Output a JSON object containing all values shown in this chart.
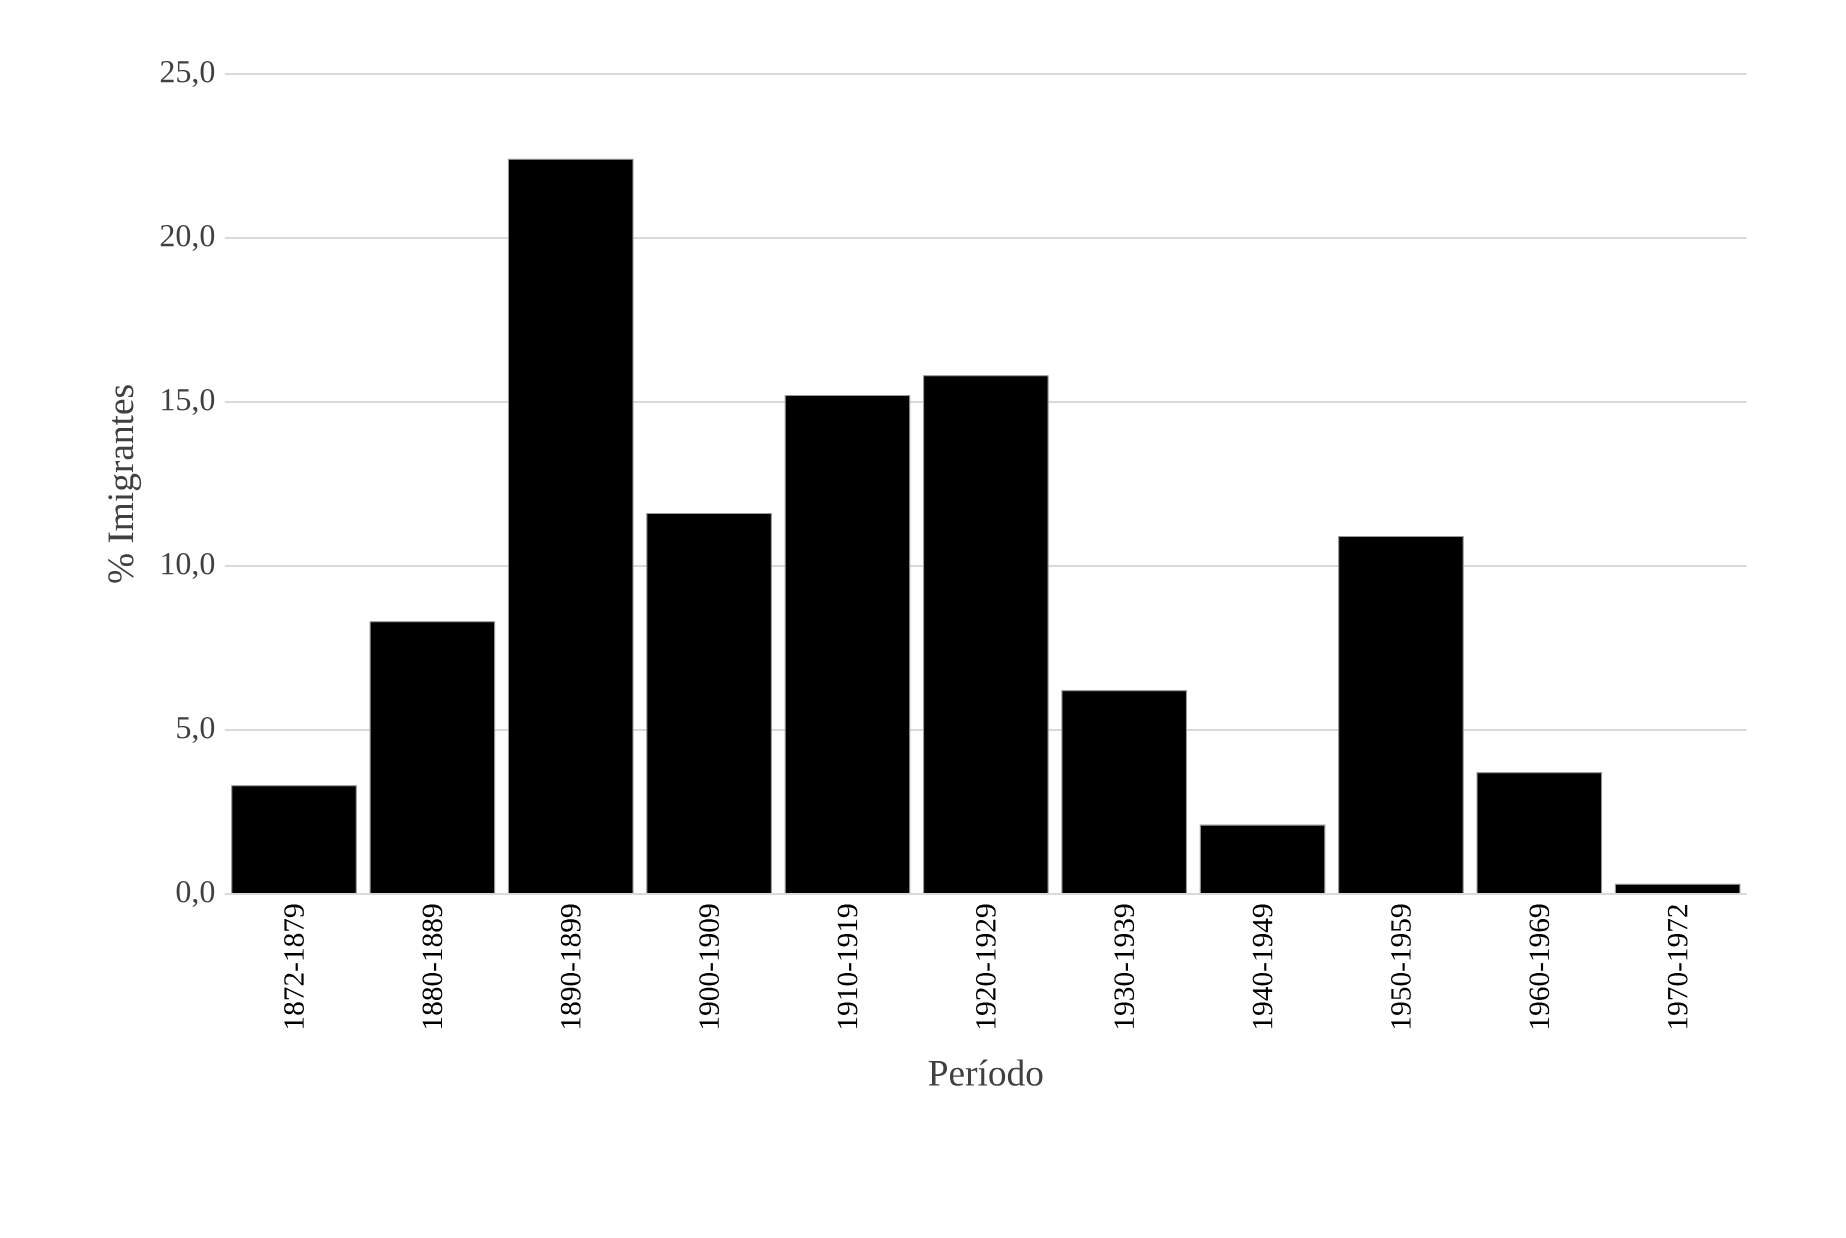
{
  "chart_data": {
    "type": "bar",
    "xlabel": "Período",
    "ylabel": "% Imigrantes",
    "categories": [
      "1872-1879",
      "1880-1889",
      "1890-1899",
      "1900-1909",
      "1910-1919",
      "1920-1929",
      "1930-1939",
      "1940-1949",
      "1950-1959",
      "1960-1969",
      "1970-1972"
    ],
    "values": [
      3.3,
      8.3,
      22.4,
      11.6,
      15.2,
      15.8,
      6.2,
      2.1,
      10.9,
      3.7,
      0.3
    ],
    "color": "#000000",
    "ylim": [
      0,
      25
    ],
    "yticks": [
      {
        "value": 0,
        "label": "0,0"
      },
      {
        "value": 5,
        "label": "5,0"
      },
      {
        "value": 10,
        "label": "10,0"
      },
      {
        "value": 15,
        "label": "15,0"
      },
      {
        "value": 20,
        "label": "20,0"
      },
      {
        "value": 25,
        "label": "25,0"
      }
    ],
    "grid": "y"
  }
}
